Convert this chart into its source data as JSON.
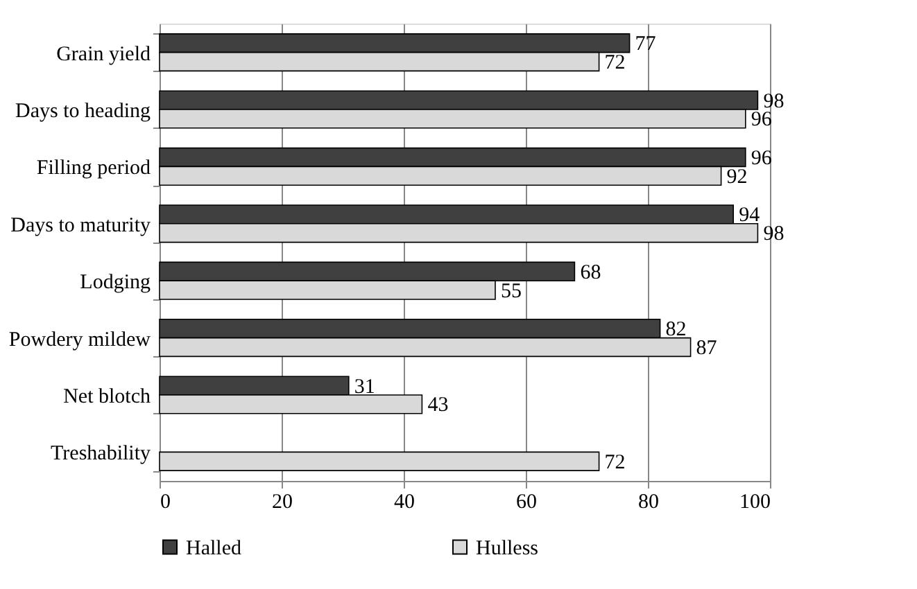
{
  "chart_data": {
    "type": "bar",
    "orientation": "horizontal",
    "categories": [
      "Grain yield",
      "Days to heading",
      "Filling period",
      "Days to maturity",
      "Lodging",
      "Powdery mildew",
      "Net blotch",
      "Treshability"
    ],
    "series": [
      {
        "name": "Halled",
        "color": "#404040",
        "values": [
          77,
          98,
          96,
          94,
          68,
          82,
          31,
          null
        ]
      },
      {
        "name": "Hulless",
        "color": "#d9d9d9",
        "values": [
          72,
          96,
          92,
          98,
          55,
          87,
          43,
          72
        ]
      }
    ],
    "xlim": [
      0,
      100
    ],
    "xticks": [
      0,
      20,
      40,
      60,
      80,
      100
    ],
    "grid": "x",
    "legend": "bottom",
    "data_labels": true
  }
}
